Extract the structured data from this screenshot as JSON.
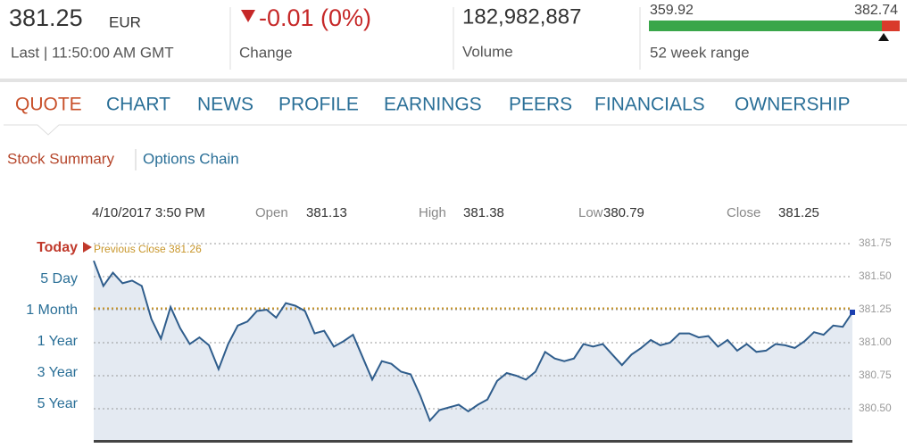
{
  "header": {
    "price": "381.25",
    "currency": "EUR",
    "last": "Last | 11:50:00 AM GMT",
    "change": "-0.01 (0%)",
    "change_label": "Change",
    "volume": "182,982,887",
    "volume_label": "Volume",
    "range_low": "359.92",
    "range_high": "382.74",
    "range_label": "52 week range"
  },
  "tabs": [
    "QUOTE",
    "CHART",
    "NEWS",
    "PROFILE",
    "EARNINGS",
    "PEERS",
    "FINANCIALS",
    "OWNERSHIP"
  ],
  "subtabs": [
    "Stock Summary",
    "Options Chain"
  ],
  "info": {
    "date": "4/10/2017 3:50 PM",
    "open_label": "Open",
    "open": "381.13",
    "high_label": "High",
    "high": "381.38",
    "low_label": "Low",
    "low": "380.79",
    "close_label": "Close",
    "close": "381.25"
  },
  "periods": [
    "Today",
    "5 Day",
    "1 Month",
    "1 Year",
    "3 Year",
    "5 Year"
  ],
  "chart_data": {
    "type": "line",
    "color": "#2f5d8c",
    "area_color": "#e4eaf2",
    "previous_close": {
      "label": "Previous Close 381.26",
      "value": 381.26,
      "color": "#c8962a"
    },
    "ylim": [
      380.26,
      381.8
    ],
    "yticks": [
      381.75,
      {
        "value": 381.5,
        "label": "381.50"
      },
      381.25,
      {
        "value": 381,
        "label": "381.00"
      },
      380.75,
      {
        "value": 380.5,
        "label": "380.50"
      }
    ],
    "grid": true,
    "values": [
      381.62,
      381.43,
      381.53,
      381.45,
      381.47,
      381.43,
      381.18,
      381.03,
      381.27,
      381.11,
      380.99,
      381.04,
      380.98,
      380.8,
      380.99,
      381.13,
      381.16,
      381.24,
      381.25,
      381.19,
      381.3,
      381.28,
      381.24,
      381.07,
      381.09,
      380.97,
      381.01,
      381.06,
      380.89,
      380.72,
      380.86,
      380.84,
      380.78,
      380.76,
      380.6,
      380.41,
      380.49,
      380.51,
      380.53,
      380.48,
      380.53,
      380.57,
      380.71,
      380.77,
      380.75,
      380.72,
      380.78,
      380.93,
      380.88,
      380.86,
      380.88,
      380.99,
      380.97,
      380.99,
      380.91,
      380.83,
      380.91,
      380.96,
      381.02,
      380.98,
      381.0,
      381.07,
      381.07,
      381.04,
      381.05,
      380.97,
      381.02,
      380.94,
      380.99,
      380.93,
      380.94,
      380.99,
      380.98,
      380.96,
      381.01,
      381.08,
      381.06,
      381.13,
      381.12,
      381.23
    ]
  }
}
